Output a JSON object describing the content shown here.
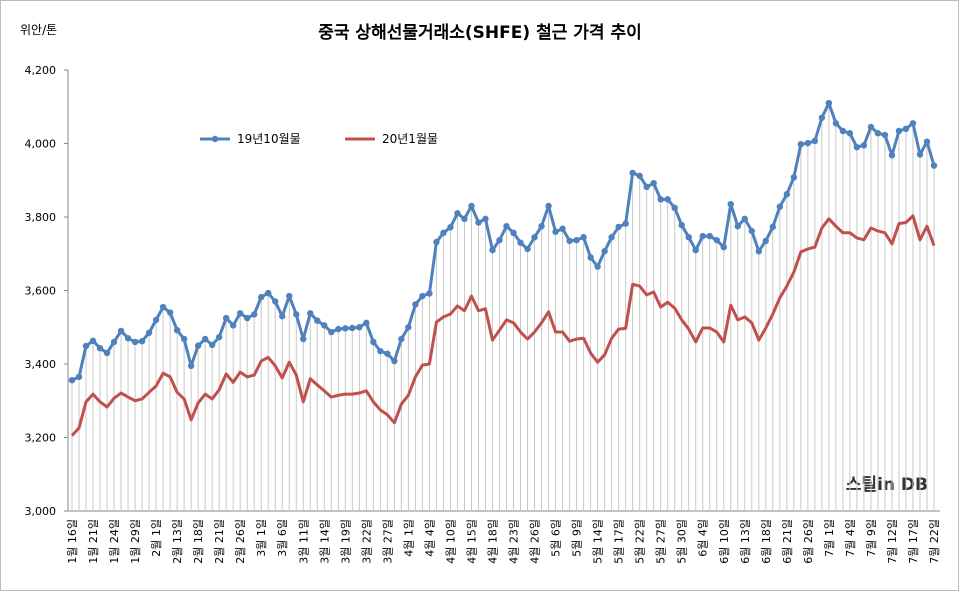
{
  "chart_data": {
    "type": "line",
    "title": "중국 상해선물거래소(SHFE) 철근 가격 추이",
    "y_label": "위안/톤",
    "watermark": "스틸in DB",
    "categories": [
      "1월 16일",
      null,
      null,
      "1월 21일",
      null,
      null,
      "1월 24일",
      null,
      null,
      "1월 29일",
      null,
      null,
      "2월 1일",
      null,
      null,
      "2월 13일",
      null,
      null,
      "2월 18일",
      null,
      null,
      "2월 21일",
      null,
      null,
      "2월 26일",
      null,
      null,
      "3월 1일",
      null,
      null,
      "3월 6일",
      null,
      null,
      "3월 11일",
      null,
      null,
      "3월 14일",
      null,
      null,
      "3월 19일",
      null,
      null,
      "3월 22일",
      null,
      null,
      "3월 27일",
      null,
      null,
      "4월 1일",
      null,
      null,
      "4월 4일",
      null,
      null,
      "4월 10일",
      null,
      null,
      "4월 15일",
      null,
      null,
      "4월 18일",
      null,
      null,
      "4월 23일",
      null,
      null,
      "4월 26일",
      null,
      null,
      "5월 6일",
      null,
      null,
      "5월 9일",
      null,
      null,
      "5월 14일",
      null,
      null,
      "5월 17일",
      null,
      null,
      "5월 22일",
      null,
      null,
      "5월 27일",
      null,
      null,
      "5월 30일",
      null,
      null,
      "6월 4일",
      null,
      null,
      "6월 10일",
      null,
      null,
      "6월 13일",
      null,
      null,
      "6월 18일",
      null,
      null,
      "6월 21일",
      null,
      null,
      "6월 26일",
      null,
      null,
      "7월 1일",
      null,
      null,
      "7월 4일",
      null,
      null,
      "7월 9일",
      null,
      null,
      "7월 12일",
      null,
      null,
      "7월 17일",
      null,
      null,
      "7월 22일"
    ],
    "series": [
      {
        "name": "19년10월물",
        "color": "#4f81bd",
        "marker": true,
        "values": [
          3356,
          3365,
          3449,
          3463,
          3443,
          3430,
          3460,
          3490,
          3470,
          3460,
          3462,
          3485,
          3520,
          3555,
          3540,
          3492,
          3468,
          3395,
          3450,
          3468,
          3452,
          3473,
          3525,
          3505,
          3538,
          3525,
          3535,
          3582,
          3593,
          3570,
          3530,
          3585,
          3535,
          3468,
          3538,
          3518,
          3505,
          3487,
          3495,
          3497,
          3498,
          3500,
          3512,
          3460,
          3435,
          3428,
          3408,
          3468,
          3500,
          3562,
          3585,
          3592,
          3732,
          3757,
          3772,
          3810,
          3795,
          3830,
          3785,
          3795,
          3710,
          3737,
          3775,
          3757,
          3730,
          3713,
          3745,
          3775,
          3830,
          3760,
          3768,
          3735,
          3737,
          3745,
          3690,
          3665,
          3707,
          3745,
          3773,
          3782,
          3920,
          3912,
          3882,
          3892,
          3848,
          3848,
          3825,
          3778,
          3745,
          3710,
          3748,
          3748,
          3737,
          3718,
          3835,
          3775,
          3795,
          3762,
          3707,
          3735,
          3773,
          3828,
          3862,
          3908,
          3998,
          4001,
          4007,
          4070,
          4110,
          4055,
          4034,
          4028,
          3990,
          3995,
          4045,
          4028,
          4023,
          3968,
          4034,
          4040,
          4055,
          3970,
          4005,
          3940
        ]
      },
      {
        "name": "20년1월물",
        "color": "#c0504d",
        "marker": false,
        "values": [
          3205,
          3226,
          3297,
          3318,
          3297,
          3283,
          3307,
          3321,
          3310,
          3300,
          3305,
          3323,
          3340,
          3375,
          3365,
          3323,
          3305,
          3248,
          3294,
          3318,
          3305,
          3330,
          3373,
          3350,
          3378,
          3365,
          3370,
          3408,
          3418,
          3395,
          3362,
          3405,
          3370,
          3297,
          3360,
          3343,
          3327,
          3310,
          3315,
          3318,
          3318,
          3321,
          3327,
          3297,
          3275,
          3262,
          3240,
          3291,
          3315,
          3365,
          3397,
          3400,
          3514,
          3528,
          3536,
          3558,
          3545,
          3585,
          3545,
          3550,
          3465,
          3492,
          3520,
          3512,
          3487,
          3468,
          3487,
          3512,
          3542,
          3487,
          3487,
          3462,
          3468,
          3470,
          3430,
          3405,
          3425,
          3470,
          3495,
          3497,
          3617,
          3612,
          3588,
          3596,
          3555,
          3568,
          3552,
          3520,
          3495,
          3460,
          3498,
          3498,
          3487,
          3460,
          3560,
          3520,
          3528,
          3512,
          3465,
          3498,
          3536,
          3580,
          3612,
          3650,
          3705,
          3713,
          3718,
          3770,
          3795,
          3775,
          3757,
          3757,
          3743,
          3738,
          3770,
          3762,
          3757,
          3727,
          3782,
          3785,
          3803,
          3738,
          3775,
          3722
        ]
      }
    ],
    "ylim": [
      3000,
      4200
    ],
    "yticks": [
      {
        "value": 3000,
        "label": "3,000"
      },
      {
        "value": 3200,
        "label": "3,200"
      },
      {
        "value": 3400,
        "label": "3,400"
      },
      {
        "value": 3600,
        "label": "3,600"
      },
      {
        "value": 3800,
        "label": "3,800"
      },
      {
        "value": 4000,
        "label": "4,000"
      },
      {
        "value": 4200,
        "label": "4,200"
      }
    ],
    "drop_lines": true,
    "legend": "upper left"
  }
}
